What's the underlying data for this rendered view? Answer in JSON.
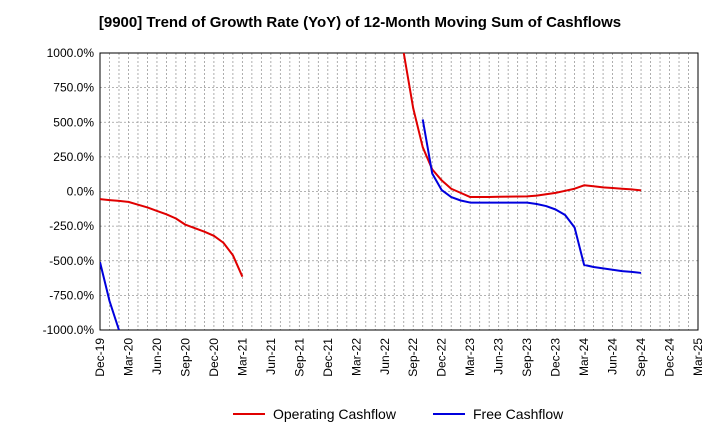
{
  "chart_data": {
    "type": "line",
    "title": "[9900]  Trend of Growth Rate (YoY) of 12-Month Moving Sum of Cashflows",
    "xlabel": "",
    "ylabel": "",
    "ylim": [
      -1000,
      1000
    ],
    "y_ticks": [
      1000,
      750,
      500,
      250,
      0,
      -250,
      -500,
      -750,
      -1000
    ],
    "y_tick_labels": [
      "1000.0%",
      "750.0%",
      "500.0%",
      "250.0%",
      "0.0%",
      "-250.0%",
      "-500.0%",
      "-750.0%",
      "-1000.0%"
    ],
    "x_tick_labels": [
      "Dec-19",
      "Mar-20",
      "Jun-20",
      "Sep-20",
      "Dec-20",
      "Mar-21",
      "Jun-21",
      "Sep-21",
      "Dec-21",
      "Mar-22",
      "Jun-22",
      "Sep-22",
      "Dec-22",
      "Mar-23",
      "Jun-23",
      "Sep-23",
      "Dec-23",
      "Mar-24",
      "Jun-24",
      "Sep-24",
      "Dec-24",
      "Mar-25"
    ],
    "x_range_months": [
      "2019-12",
      "2025-03"
    ],
    "grid": true,
    "legend_position": "bottom",
    "series": [
      {
        "name": "Operating Cashflow",
        "color": "#e00000",
        "x": [
          "2019-12",
          "2020-01",
          "2020-02",
          "2020-03",
          "2020-04",
          "2020-05",
          "2020-06",
          "2020-07",
          "2020-08",
          "2020-09",
          "2020-10",
          "2020-11",
          "2020-12",
          "2021-01",
          "2021-02",
          "2021-03",
          null,
          "2022-08",
          "2022-09",
          "2022-10",
          "2022-11",
          "2022-12",
          "2023-01",
          "2023-02",
          "2023-03",
          "2023-04",
          "2023-05",
          "2023-06",
          "2023-07",
          "2023-08",
          "2023-09",
          "2023-10",
          "2023-11",
          "2023-12",
          "2024-01",
          "2024-02",
          "2024-03",
          "2024-04",
          "2024-05",
          "2024-06",
          "2024-07",
          "2024-08",
          "2024-09"
        ],
        "values": [
          -55,
          -62,
          -68,
          -75,
          -95,
          -115,
          -140,
          -165,
          -195,
          -240,
          -265,
          -290,
          -320,
          -370,
          -460,
          -615,
          null,
          1000,
          600,
          320,
          160,
          80,
          20,
          -10,
          -40,
          -40,
          -40,
          -38,
          -37,
          -36,
          -35,
          -30,
          -20,
          -10,
          5,
          20,
          45,
          38,
          30,
          25,
          20,
          15,
          8
        ]
      },
      {
        "name": "Free Cashflow",
        "color": "#0000dd",
        "x": [
          "2019-12",
          "2020-01",
          "2020-02",
          null,
          "2022-10",
          "2022-11",
          "2022-12",
          "2023-01",
          "2023-02",
          "2023-03",
          "2023-04",
          "2023-05",
          "2023-06",
          "2023-07",
          "2023-08",
          "2023-09",
          "2023-10",
          "2023-11",
          "2023-12",
          "2024-01",
          "2024-02",
          "2024-03",
          "2024-04",
          "2024-05",
          "2024-06",
          "2024-07",
          "2024-08",
          "2024-09"
        ],
        "values": [
          -510,
          -790,
          -1000,
          null,
          520,
          130,
          10,
          -40,
          -65,
          -80,
          -80,
          -80,
          -80,
          -80,
          -80,
          -80,
          -90,
          -105,
          -130,
          -170,
          -260,
          -530,
          -545,
          -555,
          -565,
          -575,
          -580,
          -588
        ]
      }
    ]
  }
}
